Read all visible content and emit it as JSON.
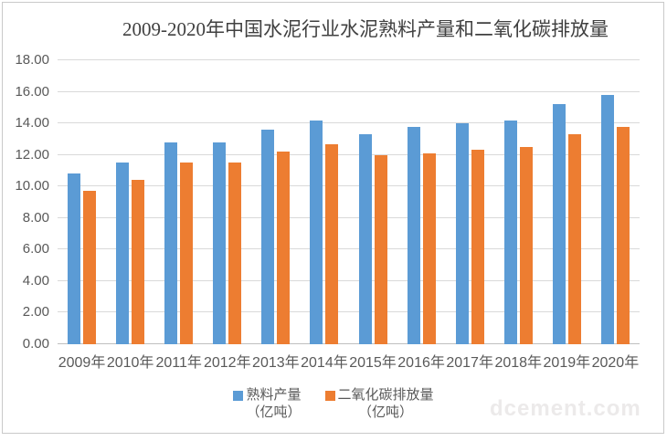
{
  "title": "2009-2020年中国水泥行业水泥熟料产量和二氧化碳排放量",
  "watermark": "dcement.com",
  "chart_data": {
    "type": "bar",
    "title": "2009-2020年中国水泥行业水泥熟料产量和二氧化碳排放量",
    "categories": [
      "2009年",
      "2010年",
      "2011年",
      "2012年",
      "2013年",
      "2014年",
      "2015年",
      "2016年",
      "2017年",
      "2018年",
      "2019年",
      "2020年"
    ],
    "series": [
      {
        "key": "clinker-output",
        "name": "熟料产量",
        "unit": "（亿吨）",
        "color": "#5B9BD5",
        "values": [
          10.8,
          11.5,
          12.8,
          12.8,
          13.6,
          14.2,
          13.3,
          13.8,
          14.0,
          14.2,
          15.2,
          15.8
        ]
      },
      {
        "key": "co2-emissions",
        "name": "二氧化碳排放量",
        "unit": "（亿吨）",
        "color": "#ED7D31",
        "values": [
          9.7,
          10.4,
          11.5,
          11.5,
          12.2,
          12.7,
          12.0,
          12.1,
          12.3,
          12.5,
          13.3,
          13.75
        ]
      }
    ],
    "ylim": [
      0,
      18
    ],
    "ytick_step": 2,
    "ytick_labels": [
      "18.00",
      "16.00",
      "14.00",
      "12.00",
      "10.00",
      "8.00",
      "6.00",
      "4.00",
      "2.00",
      "0.00"
    ],
    "grid": true,
    "legend_position": "bottom"
  },
  "colors": {
    "clinker": "#5B9BD5",
    "co2": "#ED7D31",
    "grid": "#D9D9D9",
    "axis_line": "#BFBFBF",
    "axis_text": "#595959",
    "title_text": "#404040",
    "frame_border": "#C9C9C9",
    "watermark_text": "#ECEAEA"
  }
}
